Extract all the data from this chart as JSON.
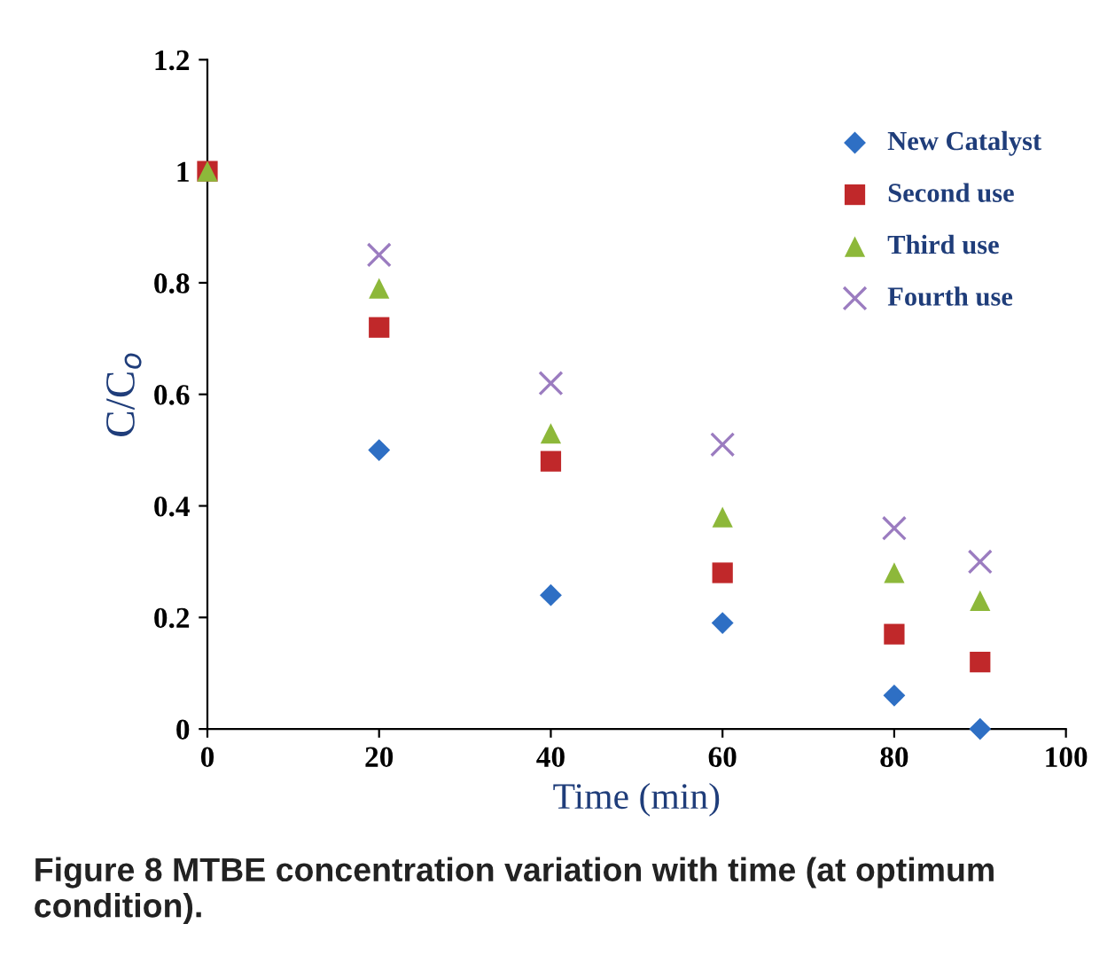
{
  "chart_data": {
    "type": "scatter",
    "xlabel": "Time (min)",
    "ylabel": "C/C$_{o}$",
    "x": [
      0,
      20,
      40,
      60,
      80,
      90
    ],
    "series": [
      {
        "name": "New Catalyst",
        "color": "#2e6fc4",
        "marker": "diamond",
        "values": [
          null,
          0.5,
          0.24,
          0.19,
          0.06,
          0.0
        ]
      },
      {
        "name": "Second use",
        "color": "#c0282a",
        "marker": "square",
        "values": [
          1.0,
          0.72,
          0.48,
          0.28,
          0.17,
          0.12
        ]
      },
      {
        "name": "Third use",
        "color": "#8db83a",
        "marker": "triangle",
        "values": [
          1.0,
          0.79,
          0.53,
          0.38,
          0.28,
          0.23
        ]
      },
      {
        "name": "Fourth use",
        "color": "#9b7cc0",
        "marker": "cross",
        "values": [
          null,
          0.85,
          0.62,
          0.51,
          0.36,
          0.3
        ]
      }
    ],
    "xlim": [
      0,
      100
    ],
    "xticks": [
      0,
      20,
      40,
      60,
      80,
      100
    ],
    "ylim": [
      0,
      1.2
    ],
    "yticks": [
      0,
      0.2,
      0.4,
      0.6,
      0.8,
      1,
      1.2
    ],
    "grid": false,
    "legend": "top right",
    "annotations": [
      "Figure 8 MTBE concentration variation with time (at optimum condition)."
    ]
  }
}
